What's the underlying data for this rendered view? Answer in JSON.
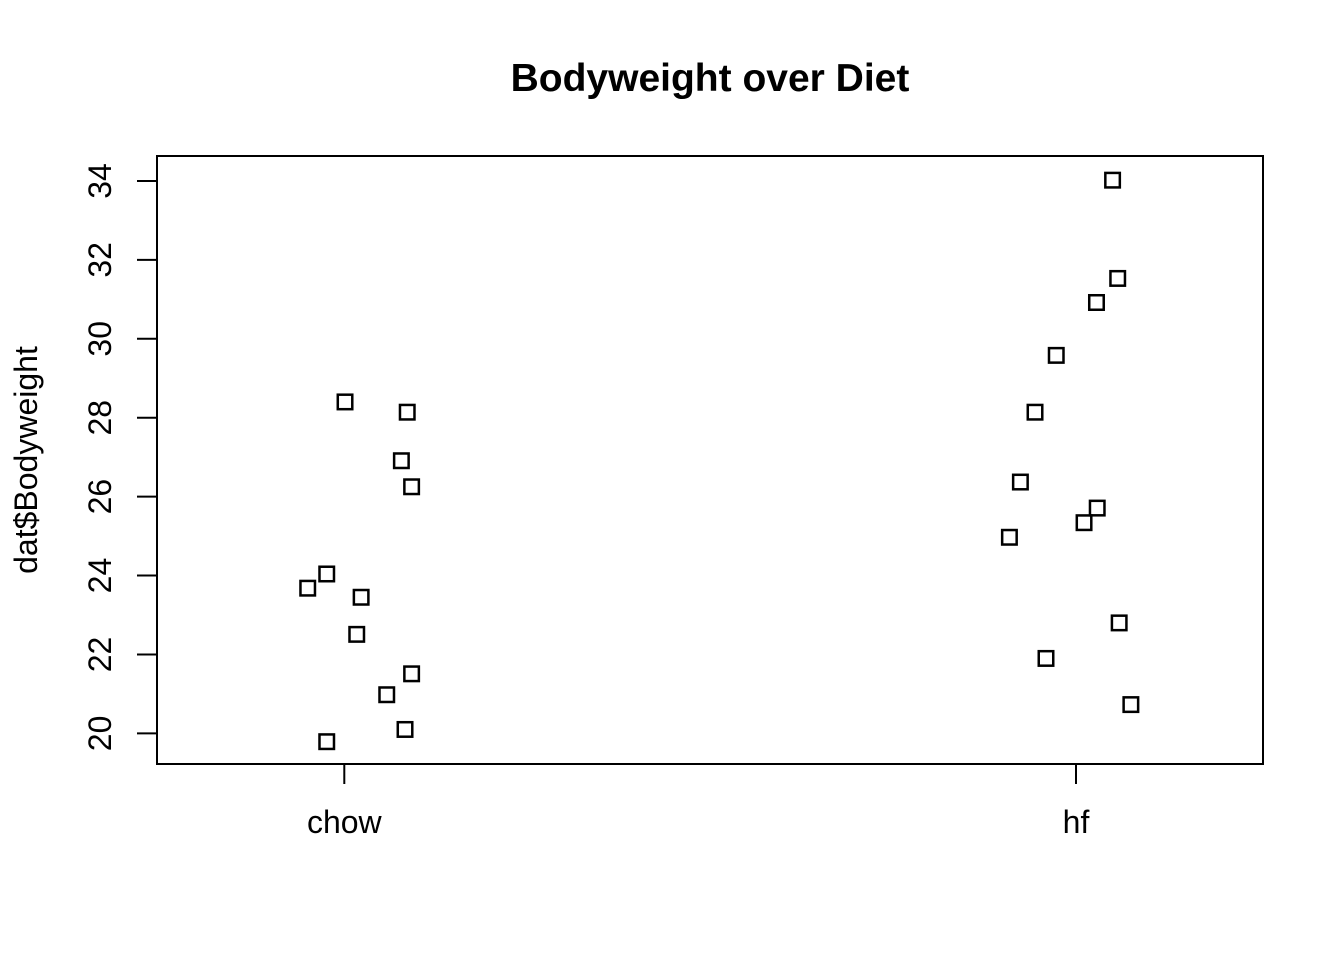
{
  "chart_data": {
    "type": "scatter",
    "subtype": "stripchart-vertical-jitter",
    "title": "Bodyweight over Diet",
    "xlabel": "",
    "ylabel": "dat$Bodyweight",
    "categories": [
      "chow",
      "hf"
    ],
    "category_positions": [
      1,
      2
    ],
    "xlim": [
      0.744,
      2.256
    ],
    "ylim": [
      19.2,
      34.6
    ],
    "y_ticks": [
      20,
      22,
      24,
      26,
      28,
      30,
      32,
      34
    ],
    "grid": false,
    "legend": "none",
    "marker": "open-square",
    "colors": {
      "foreground": "#000000",
      "background": "#FFFFFF"
    },
    "series": [
      {
        "name": "chow",
        "points": [
          {
            "x": 1.092,
            "y": 21.51
          },
          {
            "x": 1.086,
            "y": 28.14
          },
          {
            "x": 0.976,
            "y": 24.04
          },
          {
            "x": 1.023,
            "y": 23.45
          },
          {
            "x": 0.95,
            "y": 23.68
          },
          {
            "x": 0.976,
            "y": 19.79
          },
          {
            "x": 1.001,
            "y": 28.4
          },
          {
            "x": 1.058,
            "y": 20.98
          },
          {
            "x": 1.017,
            "y": 22.51
          },
          {
            "x": 1.083,
            "y": 20.1
          },
          {
            "x": 1.078,
            "y": 26.91
          },
          {
            "x": 1.092,
            "y": 26.25
          }
        ]
      },
      {
        "name": "hf",
        "points": [
          {
            "x": 2.029,
            "y": 25.71
          },
          {
            "x": 1.924,
            "y": 26.37
          },
          {
            "x": 2.059,
            "y": 22.8
          },
          {
            "x": 2.011,
            "y": 25.34
          },
          {
            "x": 1.909,
            "y": 24.97
          },
          {
            "x": 1.944,
            "y": 28.14
          },
          {
            "x": 1.973,
            "y": 29.58
          },
          {
            "x": 2.028,
            "y": 30.92
          },
          {
            "x": 2.05,
            "y": 34.02
          },
          {
            "x": 1.959,
            "y": 21.9
          },
          {
            "x": 2.057,
            "y": 31.53
          },
          {
            "x": 2.075,
            "y": 20.73
          }
        ]
      }
    ]
  }
}
